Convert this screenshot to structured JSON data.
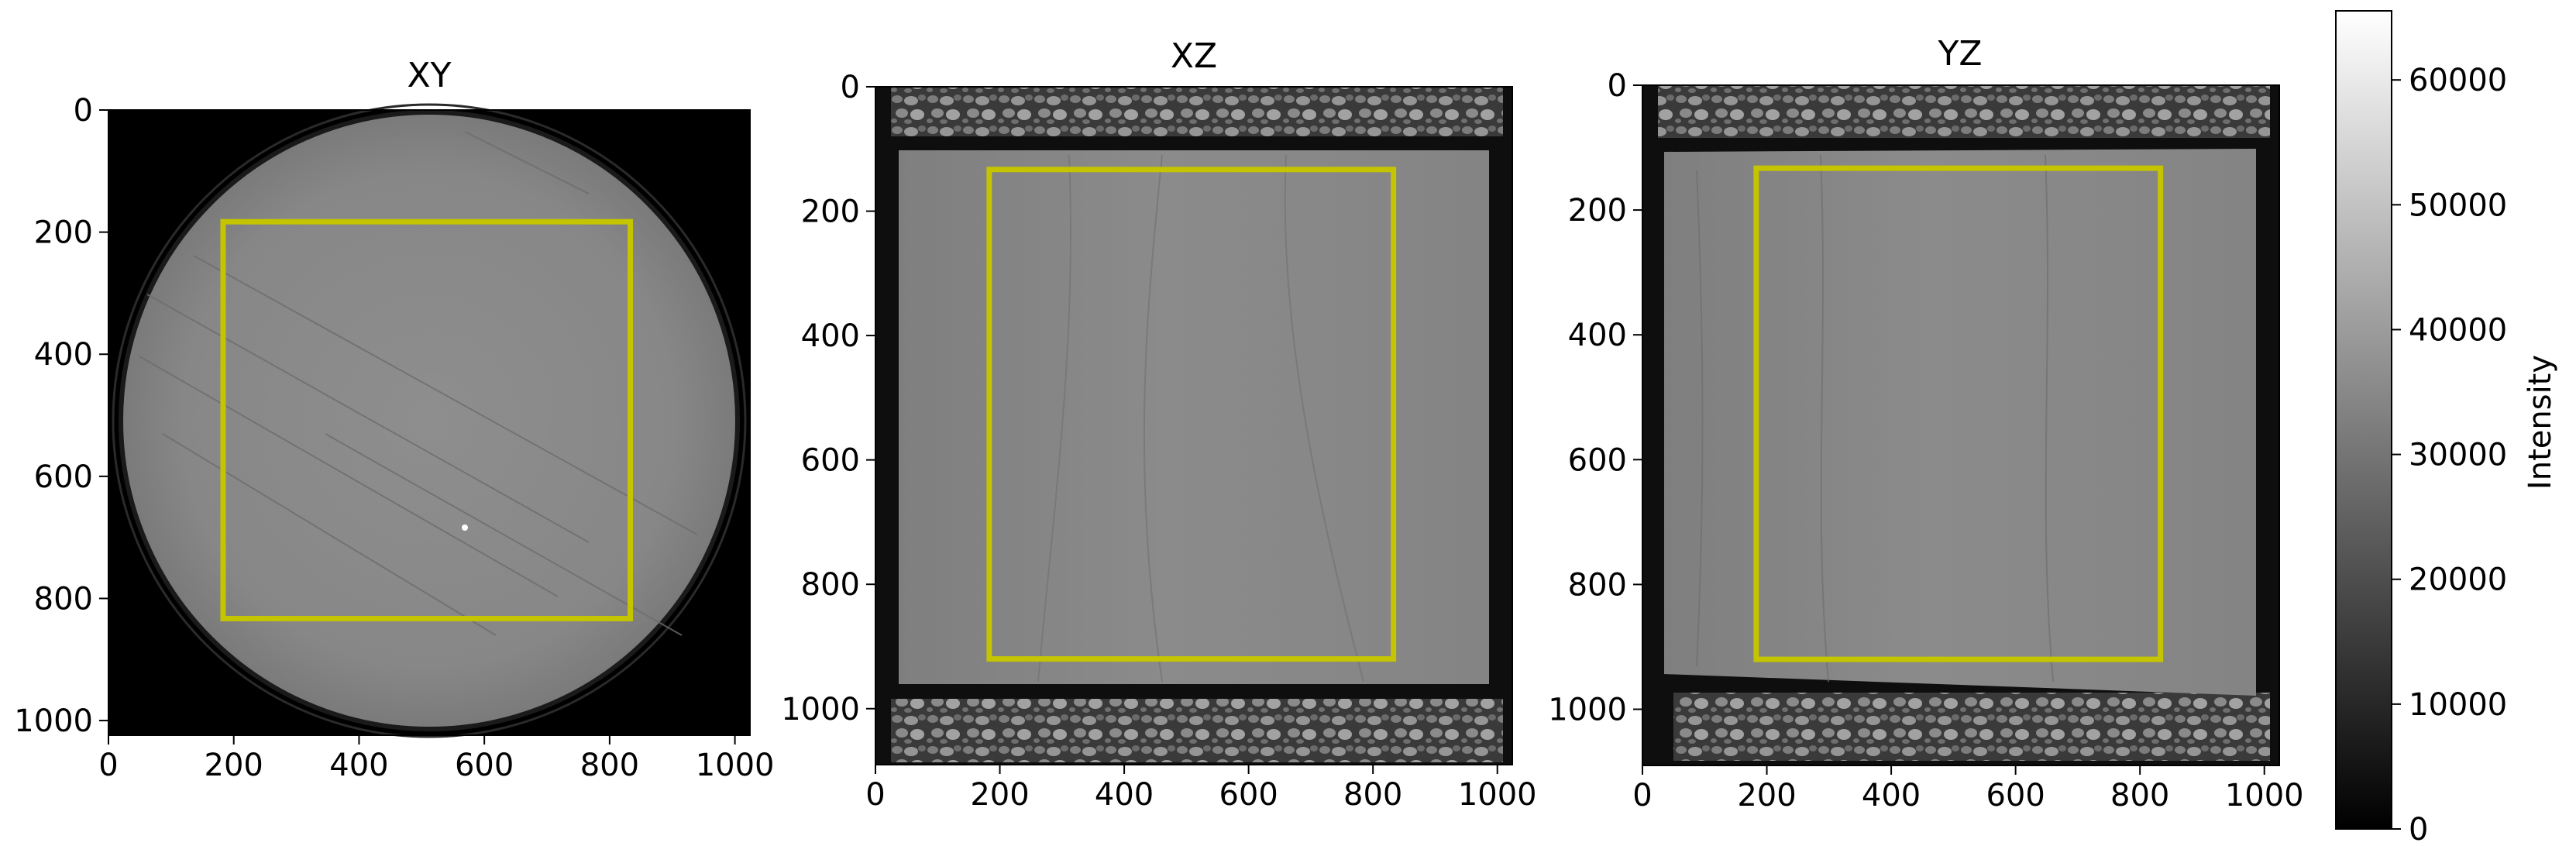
{
  "chart_data": [
    {
      "type": "image",
      "title": "XY",
      "content": "micro-CT cross-section of a cylindrical rock core (circular slice)",
      "x_ticks": [
        "0",
        "200",
        "400",
        "600",
        "800",
        "1000"
      ],
      "y_ticks": [
        "0",
        "200",
        "400",
        "600",
        "800",
        "1000"
      ],
      "xlim": [
        0,
        1024
      ],
      "ylim": [
        1024,
        0
      ],
      "roi": {
        "x0": 183,
        "y0": 183,
        "x1": 833,
        "y1": 833,
        "color": "#c4c400"
      }
    },
    {
      "type": "image",
      "title": "XZ",
      "content": "micro-CT vertical slice through the rock core with gravel packing above and below",
      "x_ticks": [
        "0",
        "200",
        "400",
        "600",
        "800",
        "1000"
      ],
      "y_ticks": [
        "0",
        "200",
        "400",
        "600",
        "800",
        "1000"
      ],
      "xlim": [
        0,
        1024
      ],
      "ylim": [
        1090,
        0
      ],
      "roi": {
        "x0": 183,
        "y0": 133,
        "x1": 833,
        "y1": 920,
        "color": "#c4c400"
      }
    },
    {
      "type": "image",
      "title": "YZ",
      "content": "micro-CT vertical slice through the rock core with gravel packing above and below",
      "x_ticks": [
        "0",
        "200",
        "400",
        "600",
        "800",
        "1000"
      ],
      "y_ticks": [
        "0",
        "200",
        "400",
        "600",
        "800",
        "1000"
      ],
      "xlim": [
        0,
        1024
      ],
      "ylim": [
        1090,
        0
      ],
      "roi": {
        "x0": 183,
        "y0": 133,
        "x1": 833,
        "y1": 920,
        "color": "#c4c400"
      }
    }
  ],
  "colorbar": {
    "label": "Intensity",
    "range": [
      0,
      65535
    ],
    "ticks": [
      "0",
      "10000",
      "20000",
      "30000",
      "40000",
      "50000",
      "60000"
    ],
    "tick_values": [
      0,
      10000,
      20000,
      30000,
      40000,
      50000,
      60000
    ],
    "colormap": "gray"
  }
}
